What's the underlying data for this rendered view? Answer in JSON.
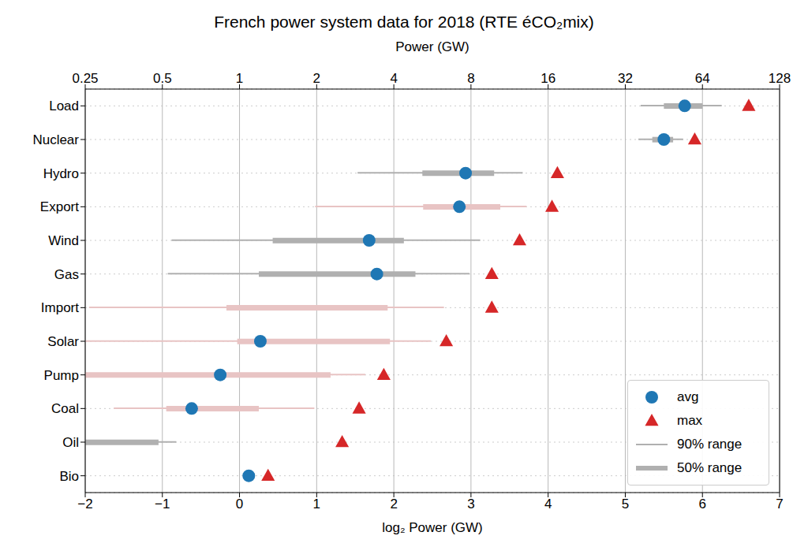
{
  "chart_data": {
    "type": "range",
    "title": "French power system data for 2018 (RTE éCO₂mix)",
    "x_label": "log₂ Power (GW)",
    "x2_label": "Power (GW)",
    "orientation": "horizontal",
    "categories": [
      "Load",
      "Nuclear",
      "Hydro",
      "Export",
      "Wind",
      "Gas",
      "Import",
      "Solar",
      "Pump",
      "Coal",
      "Oil",
      "Bio"
    ],
    "series": [
      {
        "name": "90% range",
        "type": "range",
        "line_style": "thin",
        "color": "#b0b0b0",
        "colors": [
          "#b0b0b0",
          "#b0b0b0",
          "#b0b0b0",
          "#e8c4c4",
          "#b0b0b0",
          "#b0b0b0",
          "#e8c4c4",
          "#e8c4c4",
          "#e8c4c4",
          "#e8c4c4",
          "#b0b0b0",
          "#b0b0b0"
        ],
        "values": [
          [
            5.2,
            6.25
          ],
          [
            5.17,
            5.75
          ],
          [
            1.53,
            3.67
          ],
          [
            0.98,
            3.72
          ],
          [
            -0.88,
            3.12
          ],
          [
            -0.93,
            2.98
          ],
          [
            -1.95,
            2.65
          ],
          [
            -2,
            2.48
          ],
          [
            -2,
            1.63
          ],
          [
            -1.63,
            0.97
          ],
          [
            -2,
            -0.82
          ],
          [
            0.07,
            0.2
          ]
        ]
      },
      {
        "name": "50% range",
        "type": "range",
        "line_style": "thick",
        "color": "#b0b0b0",
        "colors": [
          "#b0b0b0",
          "#b0b0b0",
          "#b0b0b0",
          "#e8c4c4",
          "#b0b0b0",
          "#b0b0b0",
          "#e8c4c4",
          "#e8c4c4",
          "#e8c4c4",
          "#e8c4c4",
          "#b0b0b0",
          "#b0b0b0"
        ],
        "values": [
          [
            5.5,
            6.0
          ],
          [
            5.35,
            5.62
          ],
          [
            2.37,
            3.3
          ],
          [
            2.38,
            3.38
          ],
          [
            0.43,
            2.13
          ],
          [
            0.25,
            2.28
          ],
          [
            -0.17,
            1.92
          ],
          [
            -0.03,
            1.95
          ],
          [
            -2,
            1.18
          ],
          [
            -0.95,
            0.25
          ],
          [
            -2,
            -1.05
          ],
          [
            0.1,
            0.16
          ]
        ]
      },
      {
        "name": "avg",
        "type": "scatter",
        "marker": "circle",
        "color": "#1f77b4",
        "values": [
          5.77,
          5.5,
          2.93,
          2.85,
          1.68,
          1.78,
          null,
          0.27,
          -0.25,
          -0.62,
          null,
          0.12
        ]
      },
      {
        "name": "max",
        "type": "scatter",
        "marker": "triangle",
        "color": "#d62728",
        "values": [
          6.6,
          5.9,
          4.12,
          4.05,
          3.63,
          3.27,
          3.27,
          2.68,
          1.87,
          1.55,
          1.33,
          0.37
        ]
      }
    ],
    "xlim": [
      -2,
      7
    ],
    "xticks": [
      {
        "value": -2,
        "label": "−2"
      },
      {
        "value": -1,
        "label": "−1"
      },
      0,
      1,
      2,
      3,
      4,
      5,
      6,
      7
    ],
    "x2lim": [
      -2,
      7
    ],
    "x2ticks": [
      {
        "value": -2,
        "label": "0.25"
      },
      {
        "value": -1,
        "label": "0.5"
      },
      {
        "value": 0,
        "label": "1"
      },
      {
        "value": 1,
        "label": "2"
      },
      {
        "value": 2,
        "label": "4"
      },
      {
        "value": 3,
        "label": "8"
      },
      {
        "value": 4,
        "label": "16"
      },
      {
        "value": 5,
        "label": "32"
      },
      {
        "value": 6,
        "label": "64"
      },
      {
        "value": 7,
        "label": "128"
      }
    ],
    "grid": true,
    "legend": "lower right"
  }
}
